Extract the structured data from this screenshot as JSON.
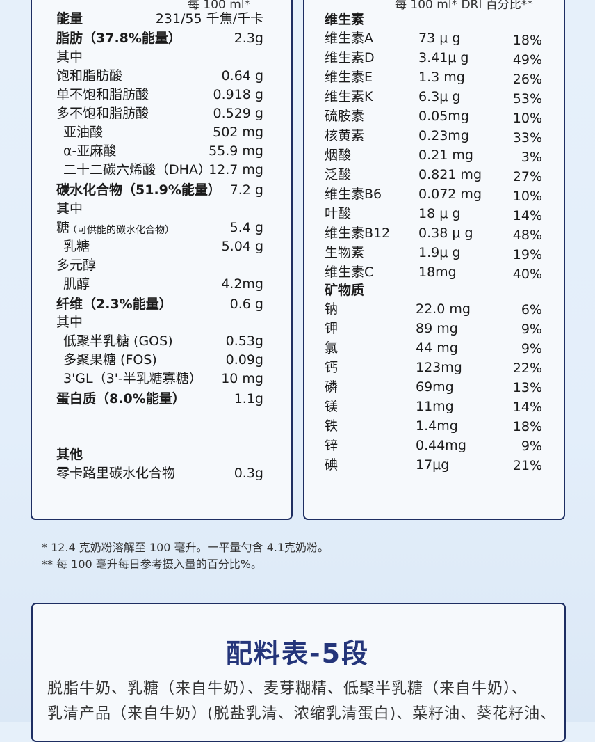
{
  "left": {
    "header": "每 100 ml*",
    "rows": [
      {
        "name": "能量",
        "value": "231/55 千焦/千卡",
        "bold": true
      },
      {
        "name": "脂肪（37.8%能量）",
        "value": "2.3g",
        "bold": true
      },
      {
        "name": "其中",
        "value": ""
      },
      {
        "name": "饱和脂肪酸",
        "value": "0.64 g"
      },
      {
        "name": "单不饱和脂肪酸",
        "value": "0.918 g"
      },
      {
        "name": "多不饱和脂肪酸",
        "value": "0.529 g"
      },
      {
        "name": "亚油酸",
        "value": "502 mg"
      },
      {
        "name": "α-亚麻酸",
        "value": "55.9 mg"
      },
      {
        "name": "二十二碳六烯酸（DHA）",
        "value": "12.7 mg"
      },
      {
        "name": "碳水化合物（51.9%能量）",
        "value": "7.2 g",
        "bold": true
      },
      {
        "name": "其中",
        "value": ""
      },
      {
        "name": "糖",
        "note": "（可供能的碳水化合物）",
        "value": "5.4 g"
      },
      {
        "name": "乳糖",
        "value": "5.04 g"
      },
      {
        "name": "多元醇",
        "value": ""
      },
      {
        "name": "肌醇",
        "value": "4.2mg"
      },
      {
        "name": "纤维（2.3%能量）",
        "value": "0.6 g",
        "bold": true
      },
      {
        "name": "其中",
        "value": ""
      },
      {
        "name": "低聚半乳糖 (GOS)",
        "value": "0.53g"
      },
      {
        "name": "多聚果糖 (FOS)",
        "value": "0.09g"
      },
      {
        "name": "3'GL（3'-半乳糖寡糖）",
        "value": "10 mg"
      },
      {
        "name": "蛋白质（8.0%能量）",
        "value": "1.1g",
        "bold": true
      },
      {
        "name": "其他",
        "value": "",
        "bold": true
      },
      {
        "name": "零卡路里碳水化合物",
        "value": "0.3g"
      }
    ]
  },
  "right": {
    "header": "每 100 ml*   DRI 百分比**",
    "vitamins_title": "维生素",
    "vitamins": [
      {
        "name": "维生素A",
        "amount": "73 μ g",
        "dri": "18%"
      },
      {
        "name": "维生素D",
        "amount": "3.41μ g",
        "dri": "49%"
      },
      {
        "name": "维生素E",
        "amount": "1.3 mg",
        "dri": "26%"
      },
      {
        "name": "维生素K",
        "amount": "6.3μ g",
        "dri": "53%"
      },
      {
        "name": "硫胺素",
        "amount": "0.05mg",
        "dri": "10%"
      },
      {
        "name": "核黄素",
        "amount": "0.23mg",
        "dri": "33%"
      },
      {
        "name": "烟酸",
        "amount": "0.21 mg",
        "dri": "3%"
      },
      {
        "name": "泛酸",
        "amount": "0.821 mg",
        "dri": "27%"
      },
      {
        "name": "维生素B6",
        "amount": "0.072 mg",
        "dri": "10%"
      },
      {
        "name": "叶酸",
        "amount": "18 μ g",
        "dri": "14%"
      },
      {
        "name": "维生素B12",
        "amount": "0.38 μ g",
        "dri": "48%"
      },
      {
        "name": "生物素",
        "amount": "1.9μ g",
        "dri": "19%"
      },
      {
        "name": "维生素C",
        "amount": "18mg",
        "dri": "40%"
      }
    ],
    "minerals_title": "矿物质",
    "minerals": [
      {
        "name": "钠",
        "amount": "22.0 mg",
        "dri": "6%"
      },
      {
        "name": "钾",
        "amount": "89 mg",
        "dri": "9%"
      },
      {
        "name": "氯",
        "amount": "44 mg",
        "dri": "9%"
      },
      {
        "name": "钙",
        "amount": "123mg",
        "dri": "22%"
      },
      {
        "name": "磷",
        "amount": "69mg",
        "dri": "13%"
      },
      {
        "name": "镁",
        "amount": "11mg",
        "dri": "14%"
      },
      {
        "name": "铁",
        "amount": "1.4mg",
        "dri": "18%"
      },
      {
        "name": "锌",
        "amount": "0.44mg",
        "dri": "9%"
      },
      {
        "name": "碘",
        "amount": "17μg",
        "dri": "21%"
      }
    ]
  },
  "footnotes": [
    "* 12.4 克奶粉溶解至 100 毫升。一平量勺含 4.1克奶粉。",
    "** 每 100 毫升每日参考摄入量的百分比%。"
  ],
  "ingredients": {
    "title": "配料表-5段",
    "lines": [
      "脱脂牛奶、乳糖（来自牛奶）、麦芽糊精、低聚半乳糖（来自牛奶）、",
      "乳清产品（来自牛奶）(脱盐乳清、浓缩乳清蛋白)、菜籽油、葵花籽油、"
    ]
  }
}
